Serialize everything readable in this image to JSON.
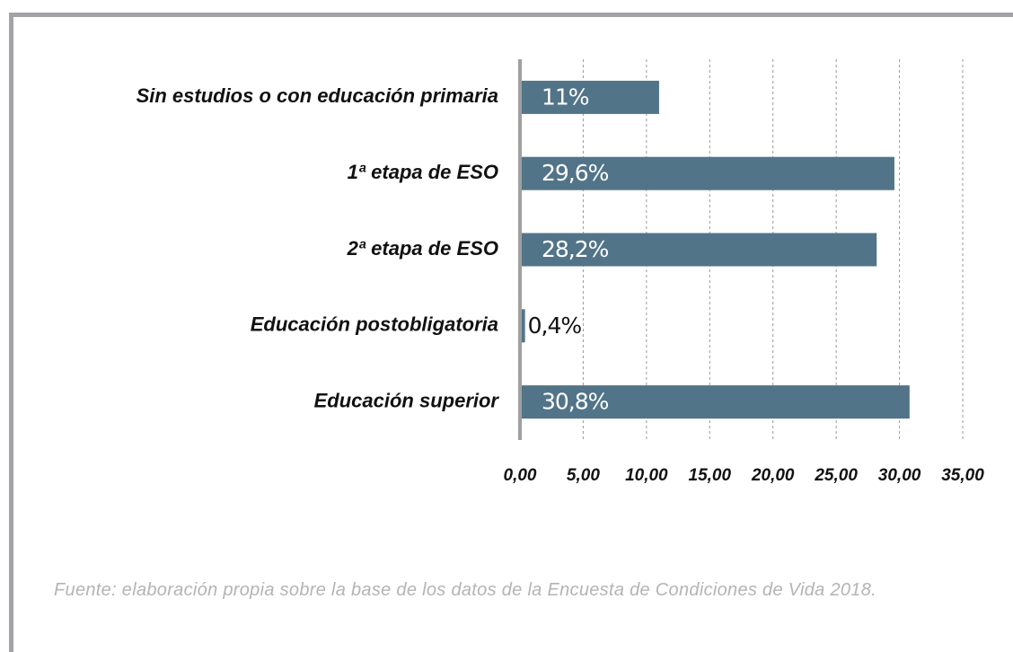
{
  "chart_data": {
    "type": "bar",
    "orientation": "horizontal",
    "categories": [
      "Sin estudios o con  educación primaria",
      "1ª etapa de ESO",
      "2ª etapa de ESO",
      "Educación postobligatoria",
      "Educación superior"
    ],
    "values": [
      11,
      29.6,
      28.2,
      0.4,
      30.8
    ],
    "value_labels": [
      "11%",
      "29,6%",
      "28,2%",
      "0,4%",
      "30,8%"
    ],
    "color": "#527489",
    "xlim": [
      0,
      35
    ],
    "xticks": [
      {
        "value": 0,
        "label": "0,00"
      },
      {
        "value": 5,
        "label": "5,00"
      },
      {
        "value": 10,
        "label": "10,00"
      },
      {
        "value": 15,
        "label": "15,00"
      },
      {
        "value": 20,
        "label": "20,00"
      },
      {
        "value": 25,
        "label": "25,00"
      },
      {
        "value": 30,
        "label": "30,00"
      },
      {
        "value": 35,
        "label": "35,00"
      }
    ],
    "grid": true,
    "source": "Fuente: elaboración propia sobre la base de los datos de la Encuesta de Condiciones de Vida 2018."
  }
}
